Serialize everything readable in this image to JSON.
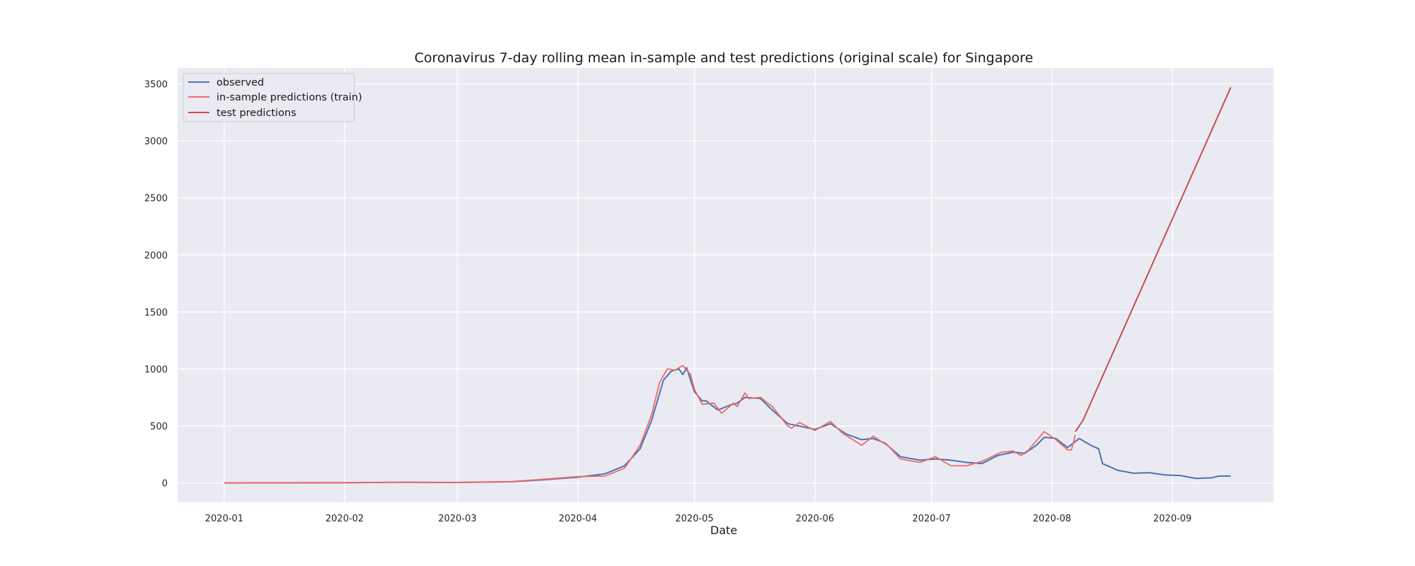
{
  "chart_data": {
    "type": "line",
    "title": "Coronavirus 7-day rolling mean in-sample and test predictions (original scale) for Singapore",
    "xlabel": "Date",
    "ylabel": "",
    "xlim": [
      "2019-12-20",
      "2020-09-27"
    ],
    "ylim": [
      -170,
      3640
    ],
    "xticks": [
      "2020-01",
      "2020-02",
      "2020-03",
      "2020-04",
      "2020-05",
      "2020-06",
      "2020-07",
      "2020-08",
      "2020-09"
    ],
    "yticks": [
      "0",
      "500",
      "1000",
      "1500",
      "2000",
      "2500",
      "3000",
      "3500"
    ],
    "grid": true,
    "legend_position": "top-left",
    "colors": {
      "background": "#eaeaf2",
      "grid": "#ffffff"
    },
    "series": [
      {
        "name": "observed",
        "color": "#4c72b0",
        "points": [
          [
            "2020-01-01",
            0
          ],
          [
            "2020-01-15",
            1
          ],
          [
            "2020-02-01",
            2
          ],
          [
            "2020-02-15",
            5
          ],
          [
            "2020-03-01",
            4
          ],
          [
            "2020-03-15",
            10
          ],
          [
            "2020-03-24",
            30
          ],
          [
            "2020-04-01",
            50
          ],
          [
            "2020-04-08",
            80
          ],
          [
            "2020-04-13",
            150
          ],
          [
            "2020-04-17",
            300
          ],
          [
            "2020-04-20",
            550
          ],
          [
            "2020-04-23",
            900
          ],
          [
            "2020-04-25",
            980
          ],
          [
            "2020-04-27",
            1000
          ],
          [
            "2020-04-28",
            950
          ],
          [
            "2020-04-29",
            1010
          ],
          [
            "2020-04-30",
            900
          ],
          [
            "2020-05-01",
            800
          ],
          [
            "2020-05-03",
            720
          ],
          [
            "2020-05-04",
            720
          ],
          [
            "2020-05-07",
            640
          ],
          [
            "2020-05-10",
            680
          ],
          [
            "2020-05-12",
            700
          ],
          [
            "2020-05-14",
            750
          ],
          [
            "2020-05-18",
            740
          ],
          [
            "2020-05-21",
            640
          ],
          [
            "2020-05-25",
            520
          ],
          [
            "2020-06-01",
            470
          ],
          [
            "2020-06-05",
            520
          ],
          [
            "2020-06-09",
            430
          ],
          [
            "2020-06-13",
            380
          ],
          [
            "2020-06-16",
            390
          ],
          [
            "2020-06-19",
            350
          ],
          [
            "2020-06-23",
            230
          ],
          [
            "2020-06-28",
            200
          ],
          [
            "2020-07-02",
            210
          ],
          [
            "2020-07-06",
            200
          ],
          [
            "2020-07-10",
            180
          ],
          [
            "2020-07-14",
            170
          ],
          [
            "2020-07-18",
            240
          ],
          [
            "2020-07-22",
            270
          ],
          [
            "2020-07-25",
            260
          ],
          [
            "2020-07-28",
            330
          ],
          [
            "2020-07-30",
            400
          ],
          [
            "2020-08-02",
            390
          ],
          [
            "2020-08-05",
            310
          ],
          [
            "2020-08-08",
            390
          ],
          [
            "2020-08-11",
            330
          ],
          [
            "2020-08-13",
            300
          ],
          [
            "2020-08-14",
            170
          ],
          [
            "2020-08-18",
            110
          ],
          [
            "2020-08-22",
            85
          ],
          [
            "2020-08-26",
            90
          ],
          [
            "2020-08-30",
            70
          ],
          [
            "2020-09-03",
            65
          ],
          [
            "2020-09-07",
            40
          ],
          [
            "2020-09-11",
            45
          ],
          [
            "2020-09-13",
            60
          ],
          [
            "2020-09-16",
            60
          ]
        ]
      },
      {
        "name": "in-sample predictions (train)",
        "color": "#ee6a66",
        "points": [
          [
            "2020-01-01",
            0
          ],
          [
            "2020-01-15",
            1
          ],
          [
            "2020-02-01",
            2
          ],
          [
            "2020-02-15",
            6
          ],
          [
            "2020-03-01",
            5
          ],
          [
            "2020-03-15",
            12
          ],
          [
            "2020-03-24",
            35
          ],
          [
            "2020-04-01",
            55
          ],
          [
            "2020-04-08",
            60
          ],
          [
            "2020-04-13",
            130
          ],
          [
            "2020-04-17",
            330
          ],
          [
            "2020-04-20",
            600
          ],
          [
            "2020-04-22",
            880
          ],
          [
            "2020-04-24",
            1000
          ],
          [
            "2020-04-26",
            990
          ],
          [
            "2020-04-28",
            1030
          ],
          [
            "2020-04-30",
            950
          ],
          [
            "2020-05-01",
            820
          ],
          [
            "2020-05-03",
            690
          ],
          [
            "2020-05-06",
            700
          ],
          [
            "2020-05-08",
            610
          ],
          [
            "2020-05-11",
            700
          ],
          [
            "2020-05-12",
            670
          ],
          [
            "2020-05-14",
            790
          ],
          [
            "2020-05-15",
            740
          ],
          [
            "2020-05-18",
            750
          ],
          [
            "2020-05-21",
            670
          ],
          [
            "2020-05-25",
            500
          ],
          [
            "2020-05-26",
            480
          ],
          [
            "2020-05-28",
            530
          ],
          [
            "2020-06-01",
            460
          ],
          [
            "2020-06-05",
            540
          ],
          [
            "2020-06-08",
            440
          ],
          [
            "2020-06-13",
            330
          ],
          [
            "2020-06-16",
            410
          ],
          [
            "2020-06-20",
            320
          ],
          [
            "2020-06-23",
            210
          ],
          [
            "2020-06-28",
            180
          ],
          [
            "2020-07-02",
            230
          ],
          [
            "2020-07-06",
            150
          ],
          [
            "2020-07-10",
            150
          ],
          [
            "2020-07-14",
            190
          ],
          [
            "2020-07-19",
            270
          ],
          [
            "2020-07-22",
            280
          ],
          [
            "2020-07-24",
            240
          ],
          [
            "2020-07-26",
            290
          ],
          [
            "2020-07-30",
            450
          ],
          [
            "2020-08-02",
            380
          ],
          [
            "2020-08-05",
            290
          ],
          [
            "2020-08-06",
            290
          ],
          [
            "2020-08-07",
            420
          ]
        ]
      },
      {
        "name": "test predictions",
        "color": "#c44e52",
        "points": [
          [
            "2020-08-07",
            450
          ],
          [
            "2020-08-09",
            550
          ],
          [
            "2020-09-16",
            3470
          ]
        ]
      }
    ]
  }
}
